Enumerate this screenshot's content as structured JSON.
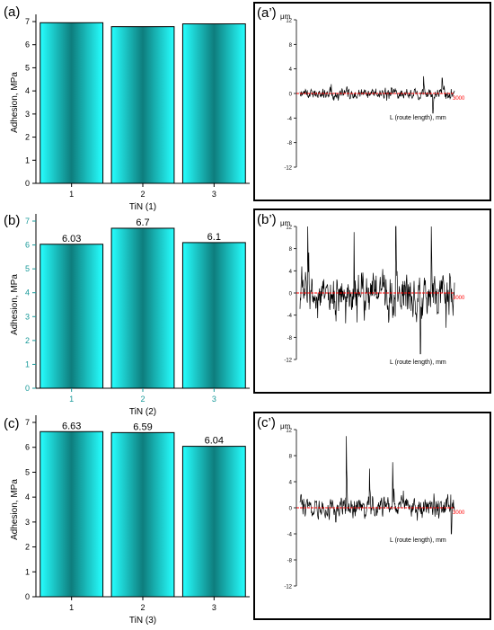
{
  "chart_data": [
    {
      "type": "bar",
      "panel_label": "(a)",
      "categories": [
        "1",
        "2",
        "3"
      ],
      "values": [
        6.95,
        6.78,
        6.9
      ],
      "data_labels": [
        "",
        "",
        ""
      ],
      "xlabel": "TiN (1)",
      "ylabel": "Adhesion, MPa",
      "ylim": [
        0,
        7
      ],
      "yticks": [
        "0",
        "1",
        "2",
        "3",
        "4",
        "5",
        "6",
        "7"
      ],
      "tick_color": "#000000",
      "bar_gradient": [
        "#26ffff",
        "#0e7d7d"
      ]
    },
    {
      "type": "bar",
      "panel_label": "(b)",
      "categories": [
        "1",
        "2",
        "3"
      ],
      "values": [
        6.03,
        6.7,
        6.1
      ],
      "data_labels": [
        "6.03",
        "6.7",
        "6.1"
      ],
      "xlabel": "TiN (2)",
      "ylabel": "Adhesion, MPa",
      "ylim": [
        0,
        7
      ],
      "yticks": [
        "0",
        "1",
        "2",
        "3",
        "4",
        "5",
        "6",
        "7"
      ],
      "tick_color": "#1a9a9a",
      "bar_gradient": [
        "#26ffff",
        "#0e7d7d"
      ]
    },
    {
      "type": "bar",
      "panel_label": "(c)",
      "categories": [
        "1",
        "2",
        "3"
      ],
      "values": [
        6.63,
        6.59,
        6.04
      ],
      "data_labels": [
        "6.63",
        "6.59",
        "6.04"
      ],
      "xlabel": "TiN (3)",
      "ylabel": "Adhesion, MPa",
      "ylim": [
        0,
        7
      ],
      "yticks": [
        "0",
        "1",
        "2",
        "3",
        "4",
        "5",
        "6",
        "7"
      ],
      "tick_color": "#000000",
      "bar_gradient": [
        "#26ffff",
        "#0e7d7d"
      ]
    },
    {
      "type": "line",
      "panel_label": "(a’)",
      "unit": "μm",
      "xlabel": "L (route length), mm",
      "end_tick": "3000",
      "ylim": [
        -12,
        12
      ],
      "yticks": [
        "12",
        "8",
        "4",
        "0",
        "-4",
        "-8",
        "-12"
      ],
      "amplitude": 1.5,
      "spikes": [
        [
          0.8,
          2.8
        ],
        [
          0.86,
          -3.2
        ],
        [
          0.92,
          2.5
        ]
      ],
      "seed": 11,
      "baseline_color": "#ff0000"
    },
    {
      "type": "line",
      "panel_label": "(b’)",
      "unit": "μm",
      "xlabel": "L (route length), mm",
      "end_tick": "3000",
      "ylim": [
        -12,
        12
      ],
      "yticks": [
        "12",
        "8",
        "4",
        "0",
        "-4",
        "-8",
        "-12"
      ],
      "amplitude": 7,
      "spikes": [
        [
          0.05,
          12
        ],
        [
          0.35,
          11
        ],
        [
          0.62,
          12
        ],
        [
          0.85,
          12
        ],
        [
          0.78,
          -11
        ]
      ],
      "seed": 23,
      "baseline_color": "#ff0000"
    },
    {
      "type": "line",
      "panel_label": "(c’)",
      "unit": "μm",
      "xlabel": "L (route length), mm",
      "end_tick": "3000",
      "ylim": [
        -12,
        12
      ],
      "yticks": [
        "12",
        "8",
        "4",
        "0",
        "-4",
        "-8",
        "-12"
      ],
      "amplitude": 3,
      "spikes": [
        [
          0.3,
          11
        ],
        [
          0.45,
          6
        ],
        [
          0.6,
          7
        ],
        [
          0.98,
          -4
        ]
      ],
      "seed": 37,
      "baseline_color": "#ff0000"
    }
  ]
}
